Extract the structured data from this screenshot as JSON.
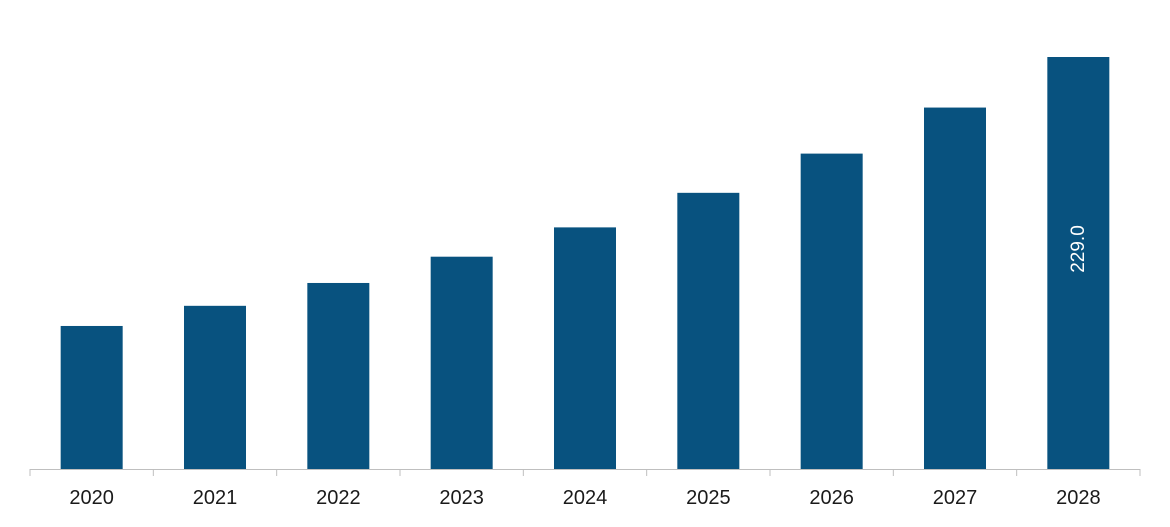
{
  "chart_data": {
    "type": "bar",
    "categories": [
      "2020",
      "2021",
      "2022",
      "2023",
      "2024",
      "2025",
      "2026",
      "2027",
      "2028"
    ],
    "values": [
      79.5,
      90.7,
      103.4,
      118.0,
      134.3,
      153.5,
      175.3,
      200.9,
      229.0
    ],
    "data_labels": [
      "",
      "",
      "",
      "",
      "",
      "",
      "",
      "",
      "229.0"
    ],
    "title": "",
    "xlabel": "",
    "ylabel": "",
    "ylim": [
      0,
      255
    ],
    "grid": false,
    "legend": "none",
    "bar_color": "#08527F",
    "axis_color": "#BFBFBF"
  }
}
